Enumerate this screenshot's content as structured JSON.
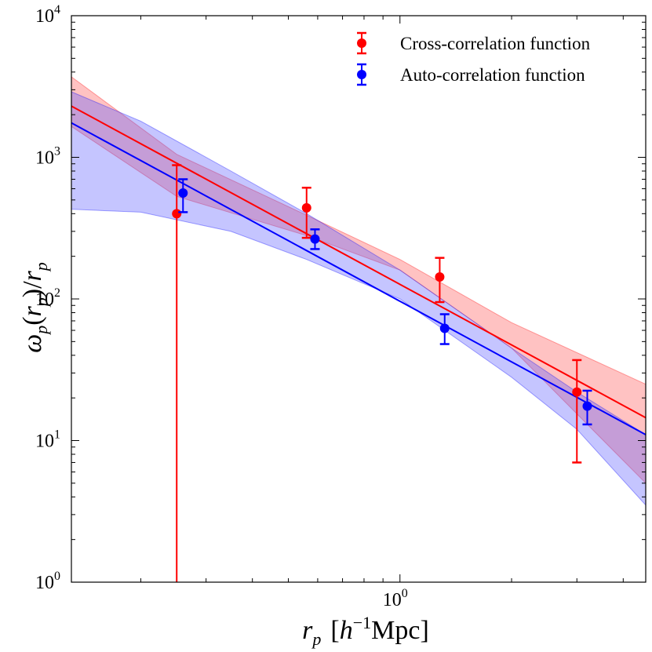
{
  "chart_data": {
    "type": "scatter",
    "xlabel": {
      "main": "r",
      "sub": "p",
      "bracket_open": "[",
      "var": "h",
      "sup": "−1",
      "unit": "Mpc",
      "bracket_close": "]"
    },
    "ylabel": {
      "omega": "ω",
      "sub1": "p",
      "open": "(",
      "r": "r",
      "sub2": "p",
      "close": ")/",
      "r2": "r",
      "sub3": "p"
    },
    "x_scale": "log",
    "y_scale": "log",
    "xlim": [
      0.13,
      4.6
    ],
    "ylim": [
      1,
      10000
    ],
    "x_ticks": [
      {
        "value": 1,
        "base": "10",
        "exp": "0"
      }
    ],
    "y_ticks": [
      {
        "value": 1,
        "base": "10",
        "exp": "0"
      },
      {
        "value": 10,
        "base": "10",
        "exp": "1"
      },
      {
        "value": 100,
        "base": "10",
        "exp": "2"
      },
      {
        "value": 1000,
        "base": "10",
        "exp": "3"
      },
      {
        "value": 10000,
        "base": "10",
        "exp": "4"
      }
    ],
    "legend": "top-right",
    "grid": false,
    "series": [
      {
        "name": "Cross-correlation function",
        "color": "#ff0000",
        "points": [
          {
            "x": 0.25,
            "y": 400,
            "lo": 1,
            "hi": 880
          },
          {
            "x": 0.56,
            "y": 440,
            "lo": 270,
            "hi": 610
          },
          {
            "x": 1.28,
            "y": 143,
            "lo": 95,
            "hi": 195
          },
          {
            "x": 3.0,
            "y": 22,
            "lo": 7,
            "hi": 37
          }
        ],
        "fit_line": [
          {
            "x": 0.13,
            "y": 2300
          },
          {
            "x": 4.6,
            "y": 14.5
          }
        ],
        "band": [
          {
            "x": 0.13,
            "lo": 1650,
            "hi": 3700
          },
          {
            "x": 0.25,
            "lo": 530,
            "hi": 1050
          },
          {
            "x": 0.56,
            "lo": 280,
            "hi": 390
          },
          {
            "x": 1.0,
            "lo": 160,
            "hi": 190
          },
          {
            "x": 2.0,
            "lo": 45,
            "hi": 68
          },
          {
            "x": 4.6,
            "lo": 5,
            "hi": 25
          }
        ]
      },
      {
        "name": "Auto-correlation function",
        "color": "#0000ff",
        "points": [
          {
            "x": 0.26,
            "y": 560,
            "lo": 410,
            "hi": 700
          },
          {
            "x": 0.59,
            "y": 265,
            "lo": 225,
            "hi": 310
          },
          {
            "x": 1.32,
            "y": 62,
            "lo": 48,
            "hi": 78
          },
          {
            "x": 3.2,
            "y": 17.5,
            "lo": 13,
            "hi": 22.5
          }
        ],
        "fit_line": [
          {
            "x": 0.13,
            "y": 1750
          },
          {
            "x": 4.6,
            "y": 11
          }
        ],
        "band": [
          {
            "x": 0.13,
            "lo": 430,
            "hi": 2900
          },
          {
            "x": 0.2,
            "lo": 410,
            "hi": 1800
          },
          {
            "x": 0.35,
            "lo": 300,
            "hi": 800
          },
          {
            "x": 0.56,
            "lo": 190,
            "hi": 400
          },
          {
            "x": 1.0,
            "lo": 100,
            "hi": 160
          },
          {
            "x": 2.0,
            "lo": 28,
            "hi": 45
          },
          {
            "x": 3.0,
            "lo": 12,
            "hi": 22
          },
          {
            "x": 4.6,
            "lo": 3.5,
            "hi": 11
          }
        ]
      }
    ]
  }
}
